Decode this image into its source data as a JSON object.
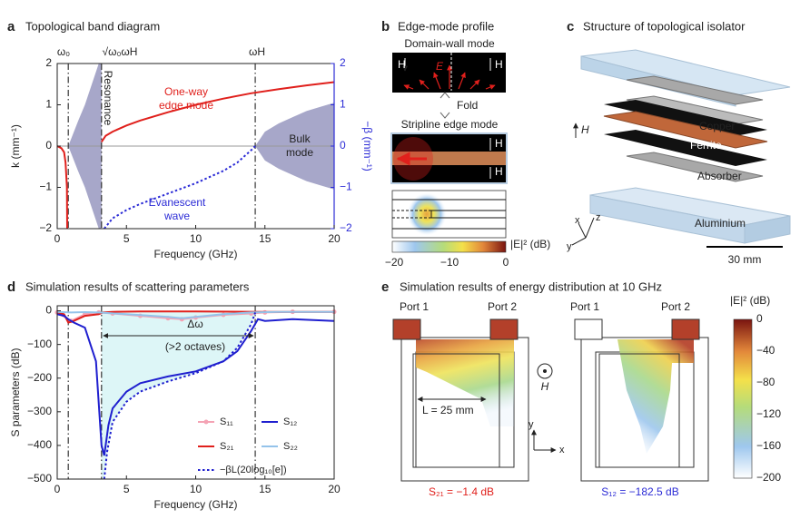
{
  "chart_data": [
    {
      "type": "line",
      "panel": "a",
      "title": "Topological band diagram",
      "xlabel": "Frequency (GHz)",
      "ylabel": "k (mm⁻¹)",
      "y2label": "−β (mm⁻¹)",
      "y2color": "#2b2bd6",
      "xlim": [
        0,
        20
      ],
      "xticks": [
        0,
        5,
        10,
        15,
        20
      ],
      "ylim": [
        -2,
        2
      ],
      "yticks": [
        {
          "value": -2,
          "label": "−2"
        },
        {
          "value": -1,
          "label": "−1"
        },
        0,
        1,
        2
      ],
      "y2lim": [
        -2,
        2
      ],
      "y2ticks": [
        {
          "value": -2,
          "label": "−2"
        },
        {
          "value": -1,
          "label": "−1"
        },
        0,
        1,
        2
      ],
      "hlines": [
        0
      ],
      "vlines": [
        0.8,
        3.2,
        14.3
      ],
      "annotations": [
        "ω₀",
        "√ω₀ωH",
        "ωH",
        "Resonance",
        "One-way",
        "edge mode",
        "Bulk",
        "mode",
        "Evanescent",
        "wave"
      ],
      "bands": [
        {
          "color": "#a7a7c9",
          "x": [
            0.8,
            1.5,
            2,
            2.5,
            3,
            3.2
          ],
          "upper": [
            0,
            0.6,
            1.0,
            1.5,
            2,
            2
          ],
          "lower": [
            0,
            -0.6,
            -1.0,
            -1.5,
            -2,
            -2
          ]
        },
        {
          "color": "#a7a7c9",
          "x": [
            14.3,
            15,
            16,
            17,
            18,
            19,
            20
          ],
          "upper": [
            0,
            0.35,
            0.55,
            0.7,
            0.85,
            0.95,
            1.05
          ],
          "lower": [
            0,
            -0.35,
            -0.55,
            -0.7,
            -0.85,
            -0.95,
            -1.05
          ]
        }
      ],
      "series": [
        {
          "color": "#e0201c",
          "x": [
            3.2,
            3.5,
            4,
            5,
            6,
            8,
            10,
            12,
            14,
            16,
            18,
            20
          ],
          "values": [
            0.1,
            0.25,
            0.35,
            0.5,
            0.62,
            0.82,
            1.0,
            1.15,
            1.28,
            1.38,
            1.47,
            1.55
          ]
        },
        {
          "color": "#e0201c",
          "x": [
            0,
            0.3,
            0.5,
            0.6,
            0.7,
            0.72
          ],
          "values": [
            0,
            -0.05,
            -0.15,
            -0.4,
            -1,
            -2
          ]
        },
        {
          "color": "#2b2bd6",
          "axis": "y2",
          "dash": "dotted",
          "x": [
            3.4,
            4,
            5,
            6,
            8,
            10,
            12,
            13,
            14,
            14.3
          ],
          "values": [
            -2,
            -1.75,
            -1.55,
            -1.4,
            -1.15,
            -0.9,
            -0.6,
            -0.4,
            -0.1,
            0
          ]
        }
      ]
    },
    {
      "type": "line",
      "panel": "d",
      "title": "Simulation results of scattering parameters",
      "xlabel": "Frequency (GHz)",
      "ylabel": "S parameters (dB)",
      "xlim": [
        0,
        20
      ],
      "xticks": [
        0,
        5,
        10,
        15,
        20
      ],
      "ylim": [
        -500,
        15
      ],
      "yticks": [
        {
          "value": -500,
          "label": "−500"
        },
        {
          "value": -400,
          "label": "−400"
        },
        {
          "value": -300,
          "label": "−300"
        },
        {
          "value": -200,
          "label": "−200"
        },
        {
          "value": -100,
          "label": "−100"
        },
        0
      ],
      "vlines": [
        0.8,
        3.2,
        14.3
      ],
      "region_color": "#ddf6f7",
      "annotations": [
        "Δω",
        "(>2 octaves)"
      ],
      "series": [
        {
          "name": "S₁₁",
          "color": "#f4a3b4",
          "markers": true,
          "x": [
            0,
            1,
            2,
            3,
            4,
            6,
            8,
            9,
            10,
            12,
            14,
            15,
            17,
            20
          ],
          "values": [
            -5,
            -30,
            -10,
            -5,
            -8,
            -15,
            -22,
            -25,
            -20,
            -12,
            -8,
            -5,
            -3,
            -3
          ]
        },
        {
          "name": "S₂₁",
          "color": "#e0201c",
          "x": [
            0,
            0.5,
            0.8,
            1.2,
            2,
            3,
            3.3,
            4,
            6,
            10,
            15,
            20
          ],
          "values": [
            -5,
            -10,
            -35,
            -30,
            -15,
            -10,
            -5,
            -3,
            -2,
            -2,
            -3,
            -3
          ]
        },
        {
          "name": "S₁₂",
          "color": "#1f1fcf",
          "x": [
            0,
            0.5,
            0.8,
            1.2,
            2,
            2.8,
            3.2,
            3.4,
            3.7,
            4,
            5,
            6,
            8,
            10,
            12,
            13,
            14,
            14.5,
            15,
            17,
            20
          ],
          "values": [
            -10,
            -15,
            -25,
            -35,
            -50,
            -150,
            -400,
            -430,
            -340,
            -290,
            -240,
            -215,
            -195,
            -180,
            -150,
            -120,
            -60,
            -25,
            -30,
            -25,
            -30
          ]
        },
        {
          "name": "S₂₂",
          "color": "#94c3ea",
          "x": [
            0,
            1,
            2,
            3,
            5,
            8,
            9,
            10,
            12,
            14,
            16,
            20
          ],
          "values": [
            -3,
            -5,
            -4,
            -5,
            -10,
            -18,
            -22,
            -18,
            -10,
            -5,
            -3,
            -3
          ]
        },
        {
          "name": "−βL(20log₁₀[e])",
          "color": "#1f1fcf",
          "dash": "dotted",
          "x": [
            3.4,
            3.6,
            4,
            5,
            6,
            8,
            10,
            12,
            13,
            14,
            14.3
          ],
          "values": [
            -500,
            -420,
            -330,
            -270,
            -240,
            -210,
            -185,
            -150,
            -110,
            -40,
            -5
          ]
        }
      ]
    }
  ],
  "panels": {
    "b": {
      "letter": "b",
      "title": "Edge-mode profile",
      "domain_wall": "Domain-wall mode",
      "fold": "Fold",
      "stripline": "Stripline edge mode",
      "field_H": "H",
      "field_E": "E",
      "colorbar_label": "|E|² (dB)",
      "colorbar_ticks": [
        "−20",
        "−10",
        "0"
      ]
    },
    "c": {
      "letter": "c",
      "title": "Structure of topological isolator",
      "layers": [
        "Copper",
        "Ferrite",
        "Absorber",
        "Aluminium"
      ],
      "field_H": "H",
      "axes": [
        "x",
        "y",
        "z"
      ],
      "scale": "30 mm"
    },
    "e": {
      "letter": "e",
      "title": "Simulation results of energy distribution at 10 GHz",
      "ports": [
        "Port 1",
        "Port 2"
      ],
      "length": "L = 25 mm",
      "left_caption": "S₂₁ = −1.4 dB",
      "right_caption": "S₁₂ = −182.5 dB",
      "field_H": "H",
      "axes": [
        "x",
        "y"
      ],
      "colorbar_label": "|E|² (dB)",
      "colorbar_ticks": [
        "0",
        "−40",
        "−80",
        "−120",
        "−160",
        "−200"
      ]
    }
  }
}
